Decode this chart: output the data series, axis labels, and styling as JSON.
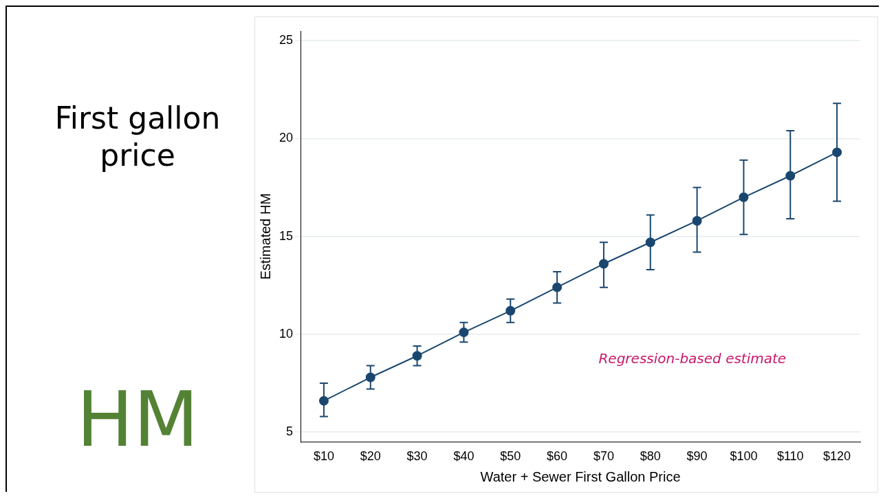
{
  "chart_data": {
    "type": "line",
    "title": "First gallon price",
    "subtitle": "HM",
    "xlabel": "Water + Sewer First Gallon Price",
    "ylabel": "Estimated HM",
    "categories": [
      "$10",
      "$20",
      "$30",
      "$40",
      "$50",
      "$60",
      "$70",
      "$80",
      "$90",
      "$100",
      "$110",
      "$120"
    ],
    "series": [
      {
        "color": "#1a476f",
        "values": [
          6.6,
          7.8,
          8.9,
          10.1,
          11.2,
          12.4,
          13.6,
          14.7,
          15.8,
          17.0,
          18.1,
          19.3
        ],
        "errors": [
          [
            5.8,
            7.5
          ],
          [
            7.2,
            8.4
          ],
          [
            8.4,
            9.4
          ],
          [
            9.6,
            10.6
          ],
          [
            10.6,
            11.8
          ],
          [
            11.6,
            13.2
          ],
          [
            12.4,
            14.7
          ],
          [
            13.3,
            16.1
          ],
          [
            14.2,
            17.5
          ],
          [
            15.1,
            18.9
          ],
          [
            15.9,
            20.4
          ],
          [
            16.8,
            21.8
          ]
        ]
      }
    ],
    "ylim": [
      4.5,
      25.5
    ],
    "yticks": [
      5,
      10,
      15,
      20,
      25
    ],
    "grid": "y",
    "legend": false,
    "marker": "circle",
    "line_style": "solid",
    "annotations": [
      "Regression-based estimate"
    ]
  }
}
